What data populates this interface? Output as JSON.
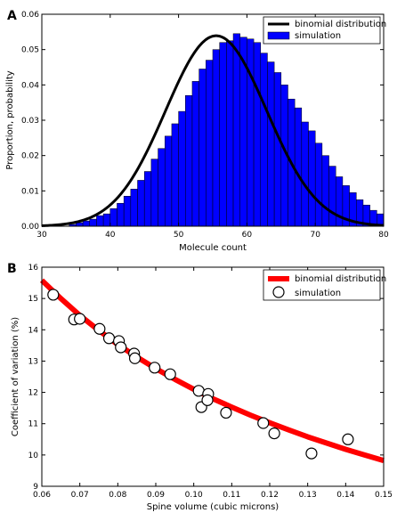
{
  "chart_data": [
    {
      "panel": "A",
      "type": "bar",
      "xlabel": "Molecule count",
      "ylabel": "Proportion, probability",
      "xlim": [
        30,
        80
      ],
      "ylim": [
        0,
        0.06
      ],
      "xticks": [
        "30",
        "40",
        "50",
        "60",
        "70",
        "80"
      ],
      "yticks": [
        "0.00",
        "0.01",
        "0.02",
        "0.03",
        "0.04",
        "0.05",
        "0.06"
      ],
      "legend_position": "top-right",
      "grid": false,
      "series": [
        {
          "name": "binomial distribution",
          "kind": "line",
          "color": "#000000",
          "distribution": {
            "type": "normal",
            "mean": 55.5,
            "sd": 7.4
          }
        },
        {
          "name": "simulation",
          "kind": "bar",
          "color": "#0000ff",
          "bin_start": 30,
          "bin_width": 1,
          "values": [
            0,
            0,
            0,
            0,
            0.0005,
            0.001,
            0.0015,
            0.002,
            0.003,
            0.0035,
            0.005,
            0.0065,
            0.0085,
            0.0105,
            0.013,
            0.0155,
            0.019,
            0.022,
            0.0255,
            0.029,
            0.0325,
            0.037,
            0.041,
            0.0445,
            0.047,
            0.05,
            0.052,
            0.0525,
            0.0545,
            0.0535,
            0.053,
            0.052,
            0.049,
            0.0465,
            0.0435,
            0.04,
            0.036,
            0.0335,
            0.0295,
            0.027,
            0.0235,
            0.02,
            0.017,
            0.014,
            0.0115,
            0.0095,
            0.0075,
            0.006,
            0.0045,
            0.0035
          ]
        }
      ]
    },
    {
      "panel": "B",
      "type": "scatter",
      "xlabel": "Spine volume (cubic microns)",
      "ylabel": "Coefficient of variation (%)",
      "xlim": [
        0.06,
        0.15
      ],
      "ylim": [
        9,
        16
      ],
      "xticks": [
        "0.06",
        "0.07",
        "0.08",
        "0.09",
        "0.10",
        "0.11",
        "0.12",
        "0.13",
        "0.14",
        "0.15"
      ],
      "yticks": [
        "9",
        "10",
        "11",
        "12",
        "13",
        "14",
        "15",
        "16"
      ],
      "legend_position": "top-right",
      "grid": false,
      "series": [
        {
          "name": "binomial distribution",
          "kind": "line",
          "color": "#ff0000",
          "x": [
            0.06,
            0.065,
            0.07,
            0.075,
            0.08,
            0.085,
            0.09,
            0.095,
            0.1,
            0.105,
            0.11,
            0.115,
            0.12,
            0.125,
            0.13,
            0.135,
            0.14,
            0.145,
            0.15
          ],
          "y": [
            15.58,
            15.0,
            14.46,
            13.98,
            13.53,
            13.13,
            12.76,
            12.42,
            12.1,
            11.8,
            11.53,
            11.27,
            11.03,
            10.8,
            10.58,
            10.38,
            10.18,
            10.0,
            9.82
          ]
        },
        {
          "name": "simulation",
          "kind": "scatter",
          "color": "#ffffff",
          "x": [
            0.063,
            0.0685,
            0.07,
            0.0752,
            0.0777,
            0.0803,
            0.0808,
            0.0843,
            0.0845,
            0.0897,
            0.0938,
            0.1013,
            0.102,
            0.1038,
            0.1036,
            0.1085,
            0.1183,
            0.1212,
            0.131,
            0.1406
          ],
          "y": [
            15.12,
            14.33,
            14.35,
            14.03,
            13.73,
            13.64,
            13.44,
            13.24,
            13.09,
            12.79,
            12.58,
            12.05,
            11.53,
            11.95,
            11.75,
            11.35,
            11.02,
            10.69,
            10.05,
            10.5
          ]
        }
      ]
    }
  ]
}
